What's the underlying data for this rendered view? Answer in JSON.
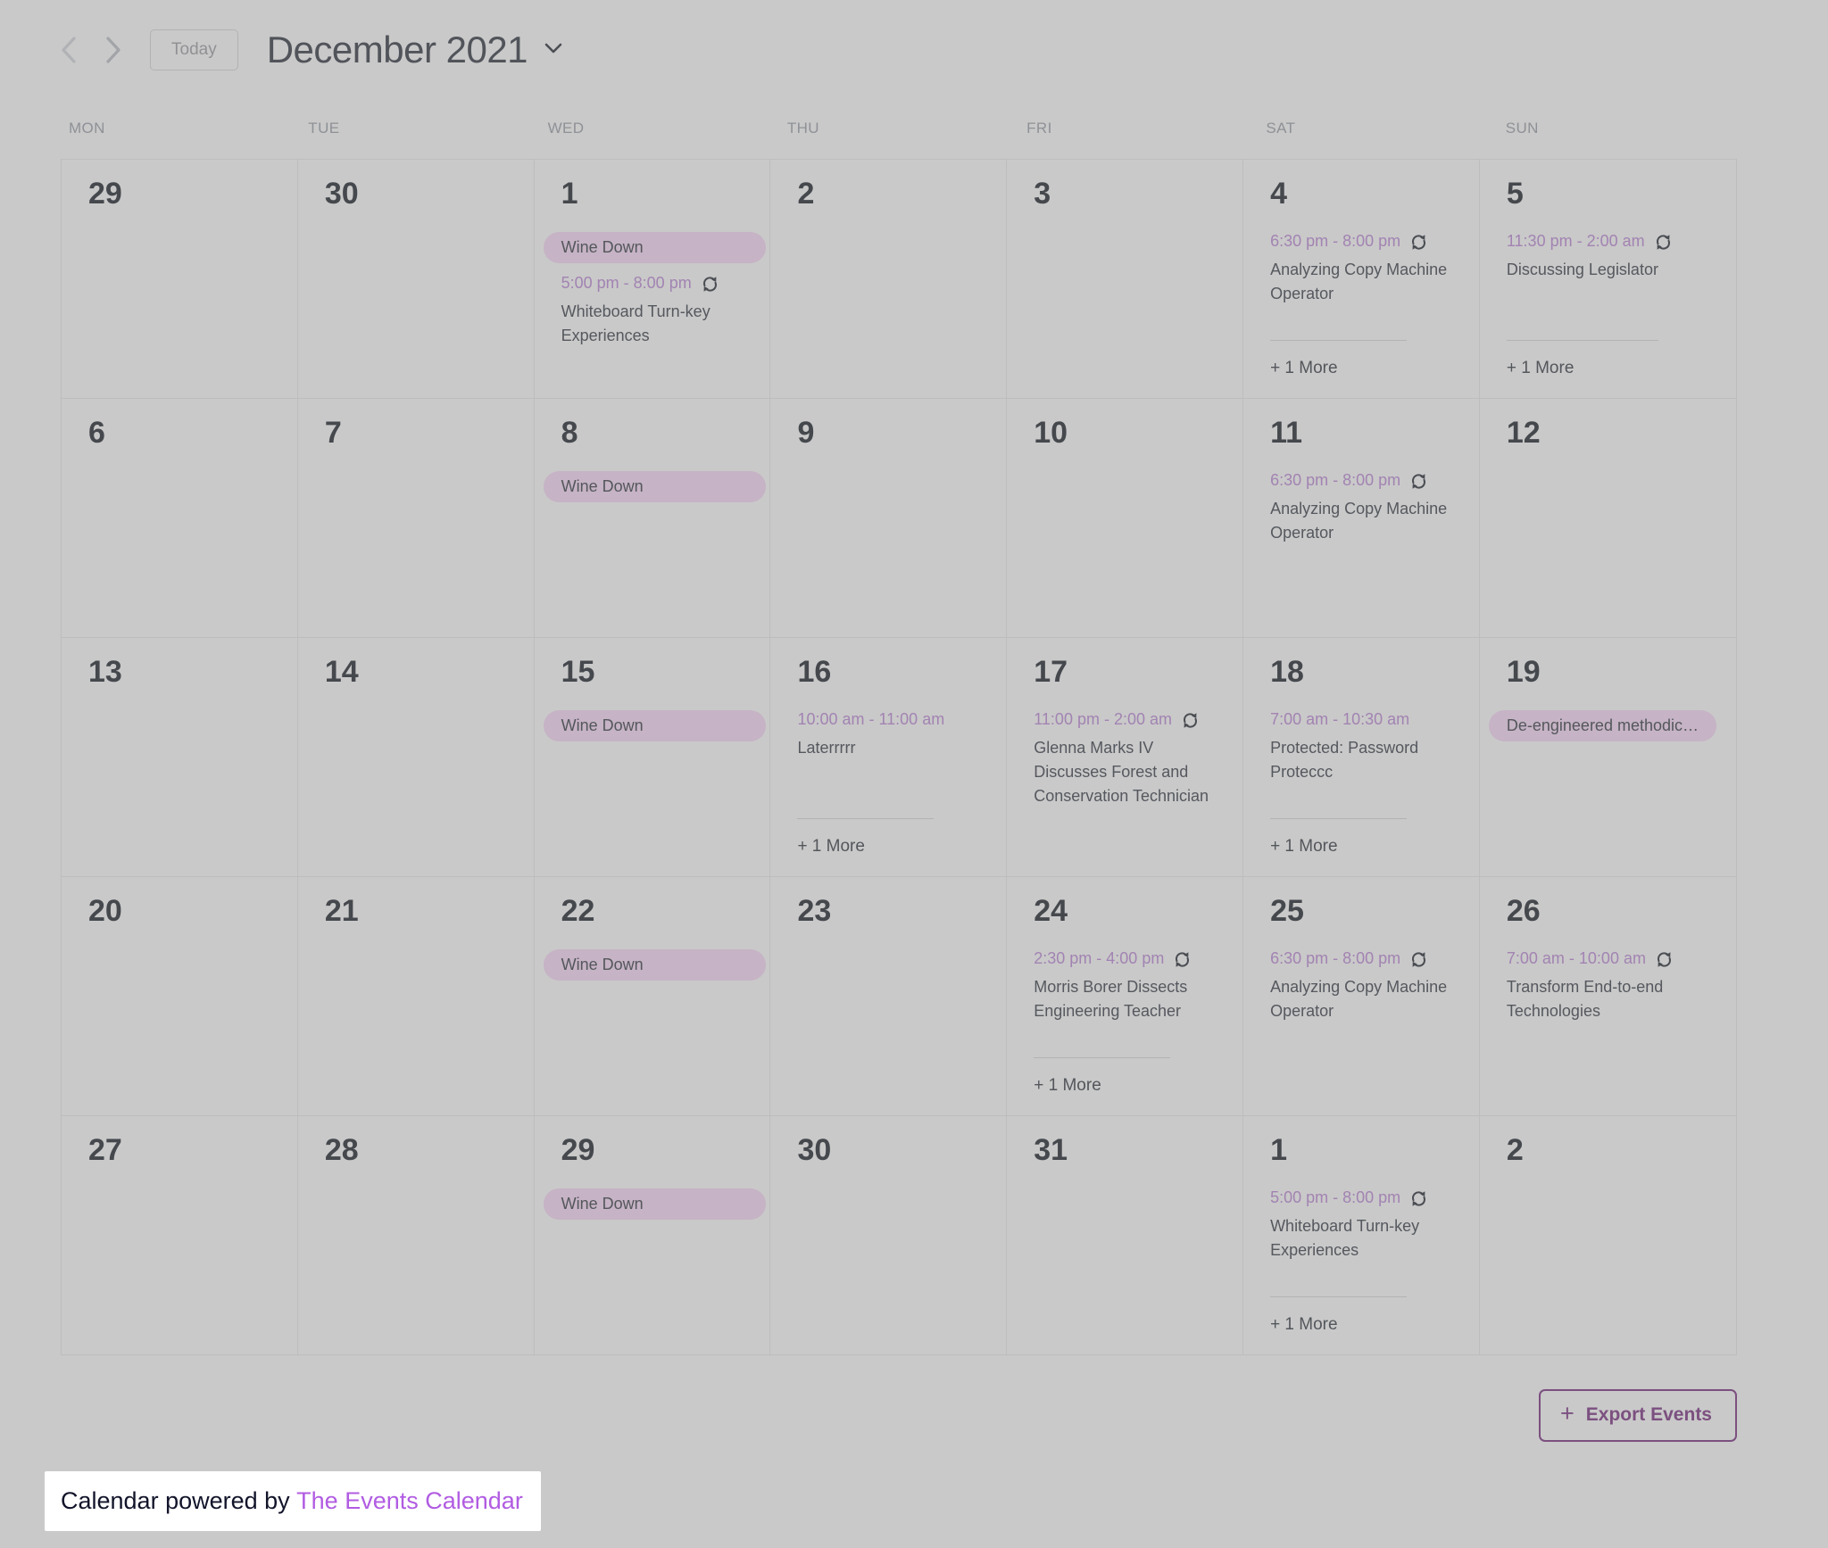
{
  "header": {
    "today_label": "Today",
    "month_title": "December 2021"
  },
  "weekdays": [
    "MON",
    "TUE",
    "WED",
    "THU",
    "FRI",
    "SAT",
    "SUN"
  ],
  "more_label": "+ 1 More",
  "export_button": {
    "plus": "+",
    "label": "Export Events"
  },
  "footer": {
    "prefix": "Calendar powered by ",
    "link_label": "The Events Calendar"
  },
  "icons": {
    "prev": "chevron-left-icon",
    "next": "chevron-right-icon",
    "month_dropdown": "chevron-down-icon",
    "recurring": "recurring-sync-icon",
    "export": "plus-icon"
  },
  "colors": {
    "page_bg": "#c9c9c9",
    "grid_border": "#bdbdbe",
    "weekday_label": "#8e9196",
    "day_number": "#45484d",
    "event_time": "#a283b2",
    "event_title": "#55585e",
    "pill_bg": "#c6b3c5",
    "pill_text": "#54575c",
    "more_link": "#53565b",
    "export_accent": "#7c5080",
    "footer_bg": "#ffffff",
    "footer_text": "#12142a",
    "footer_link": "#b15ce2"
  },
  "weeks": [
    {
      "days": [
        {
          "num": "29",
          "events": []
        },
        {
          "num": "30",
          "events": []
        },
        {
          "num": "1",
          "events": [
            {
              "type": "allday",
              "title": "Wine Down"
            },
            {
              "type": "timed",
              "time": "5:00 pm - 8:00 pm",
              "recurring": true,
              "title": "Whiteboard Turn-key Experiences"
            }
          ]
        },
        {
          "num": "2",
          "events": []
        },
        {
          "num": "3",
          "events": []
        },
        {
          "num": "4",
          "events": [
            {
              "type": "timed",
              "time": "6:30 pm - 8:00 pm",
              "recurring": true,
              "title": "Analyzing Copy Machine Operator"
            }
          ],
          "more": true
        },
        {
          "num": "5",
          "events": [
            {
              "type": "timed",
              "time": "11:30 pm - 2:00 am",
              "recurring": true,
              "title": "Discussing Legislator"
            }
          ],
          "more": true
        }
      ]
    },
    {
      "days": [
        {
          "num": "6",
          "events": []
        },
        {
          "num": "7",
          "events": []
        },
        {
          "num": "8",
          "events": [
            {
              "type": "allday",
              "title": "Wine Down"
            }
          ]
        },
        {
          "num": "9",
          "events": []
        },
        {
          "num": "10",
          "events": []
        },
        {
          "num": "11",
          "events": [
            {
              "type": "timed",
              "time": "6:30 pm - 8:00 pm",
              "recurring": true,
              "title": "Analyzing Copy Machine Operator"
            }
          ]
        },
        {
          "num": "12",
          "events": []
        }
      ]
    },
    {
      "days": [
        {
          "num": "13",
          "events": []
        },
        {
          "num": "14",
          "events": []
        },
        {
          "num": "15",
          "events": [
            {
              "type": "allday",
              "title": "Wine Down"
            }
          ]
        },
        {
          "num": "16",
          "events": [
            {
              "type": "timed",
              "time": "10:00 am - 11:00 am",
              "recurring": false,
              "title": "Laterrrrr"
            }
          ],
          "more": true
        },
        {
          "num": "17",
          "events": [
            {
              "type": "timed",
              "time": "11:00 pm - 2:00 am",
              "recurring": true,
              "title": "Glenna Marks IV Discusses Forest and Conservation Technician"
            }
          ]
        },
        {
          "num": "18",
          "events": [
            {
              "type": "timed",
              "time": "7:00 am - 10:30 am",
              "recurring": false,
              "title": "Protected: Password Proteccc"
            }
          ],
          "more": true
        },
        {
          "num": "19",
          "events": [
            {
              "type": "allday",
              "title": "De-engineered methodic…",
              "truncated": true
            }
          ]
        }
      ]
    },
    {
      "days": [
        {
          "num": "20",
          "events": []
        },
        {
          "num": "21",
          "events": []
        },
        {
          "num": "22",
          "events": [
            {
              "type": "allday",
              "title": "Wine Down"
            }
          ]
        },
        {
          "num": "23",
          "events": []
        },
        {
          "num": "24",
          "events": [
            {
              "type": "timed",
              "time": "2:30 pm - 4:00 pm",
              "recurring": true,
              "title": "Morris Borer Dissects Engineering Teacher"
            }
          ],
          "more": true
        },
        {
          "num": "25",
          "events": [
            {
              "type": "timed",
              "time": "6:30 pm - 8:00 pm",
              "recurring": true,
              "title": "Analyzing Copy Machine Operator"
            }
          ]
        },
        {
          "num": "26",
          "events": [
            {
              "type": "timed",
              "time": "7:00 am - 10:00 am",
              "recurring": true,
              "title": "Transform End-to-end Technologies"
            }
          ]
        }
      ]
    },
    {
      "days": [
        {
          "num": "27",
          "events": []
        },
        {
          "num": "28",
          "events": []
        },
        {
          "num": "29",
          "events": [
            {
              "type": "allday",
              "title": "Wine Down"
            }
          ]
        },
        {
          "num": "30",
          "events": []
        },
        {
          "num": "31",
          "events": []
        },
        {
          "num": "1",
          "events": [
            {
              "type": "timed",
              "time": "5:00 pm - 8:00 pm",
              "recurring": true,
              "title": "Whiteboard Turn-key Experiences"
            }
          ],
          "more": true
        },
        {
          "num": "2",
          "events": []
        }
      ]
    }
  ]
}
